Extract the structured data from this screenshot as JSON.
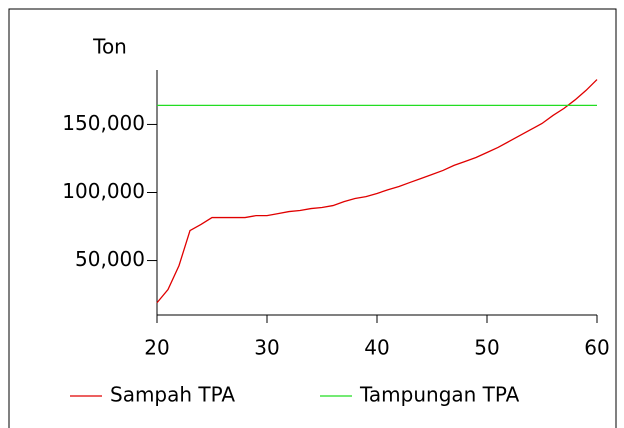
{
  "chart_data": {
    "type": "line",
    "y_label": "Ton",
    "x": [
      20,
      21,
      22,
      23,
      24,
      25,
      26,
      27,
      28,
      29,
      30,
      31,
      32,
      33,
      34,
      35,
      36,
      37,
      38,
      39,
      40,
      41,
      42,
      43,
      44,
      45,
      46,
      47,
      48,
      49,
      50,
      51,
      52,
      53,
      54,
      55,
      56,
      57,
      58,
      59,
      60
    ],
    "series": [
      {
        "name": "Sampah TPA",
        "color": "#e00000",
        "values": [
          19000,
          28700,
          46300,
          72000,
          76500,
          81600,
          81600,
          81600,
          81600,
          83000,
          83000,
          84500,
          86000,
          86800,
          88200,
          89000,
          90400,
          93300,
          95600,
          97000,
          99300,
          102000,
          104400,
          107400,
          110300,
          113200,
          116200,
          119900,
          122800,
          125700,
          129400,
          133100,
          137500,
          141900,
          146300,
          150700,
          156600,
          161800,
          168000,
          175000,
          183000
        ]
      },
      {
        "name": "Tampungan TPA",
        "color": "#22dd22",
        "values": [
          164000,
          164000,
          164000,
          164000,
          164000,
          164000,
          164000,
          164000,
          164000,
          164000,
          164000,
          164000,
          164000,
          164000,
          164000,
          164000,
          164000,
          164000,
          164000,
          164000,
          164000,
          164000,
          164000,
          164000,
          164000,
          164000,
          164000,
          164000,
          164000,
          164000,
          164000,
          164000,
          164000,
          164000,
          164000,
          164000,
          164000,
          164000,
          164000,
          164000,
          164000
        ]
      }
    ],
    "xlim": [
      20,
      60
    ],
    "xticks": [
      20,
      30,
      40,
      50,
      60
    ],
    "ylim": [
      10000,
      190000
    ],
    "yticks": [
      {
        "value": 50000,
        "label": "50,000"
      },
      {
        "value": 100000,
        "label": "100,000"
      },
      {
        "value": 150000,
        "label": "150,000"
      }
    ],
    "legend": "bottom"
  }
}
